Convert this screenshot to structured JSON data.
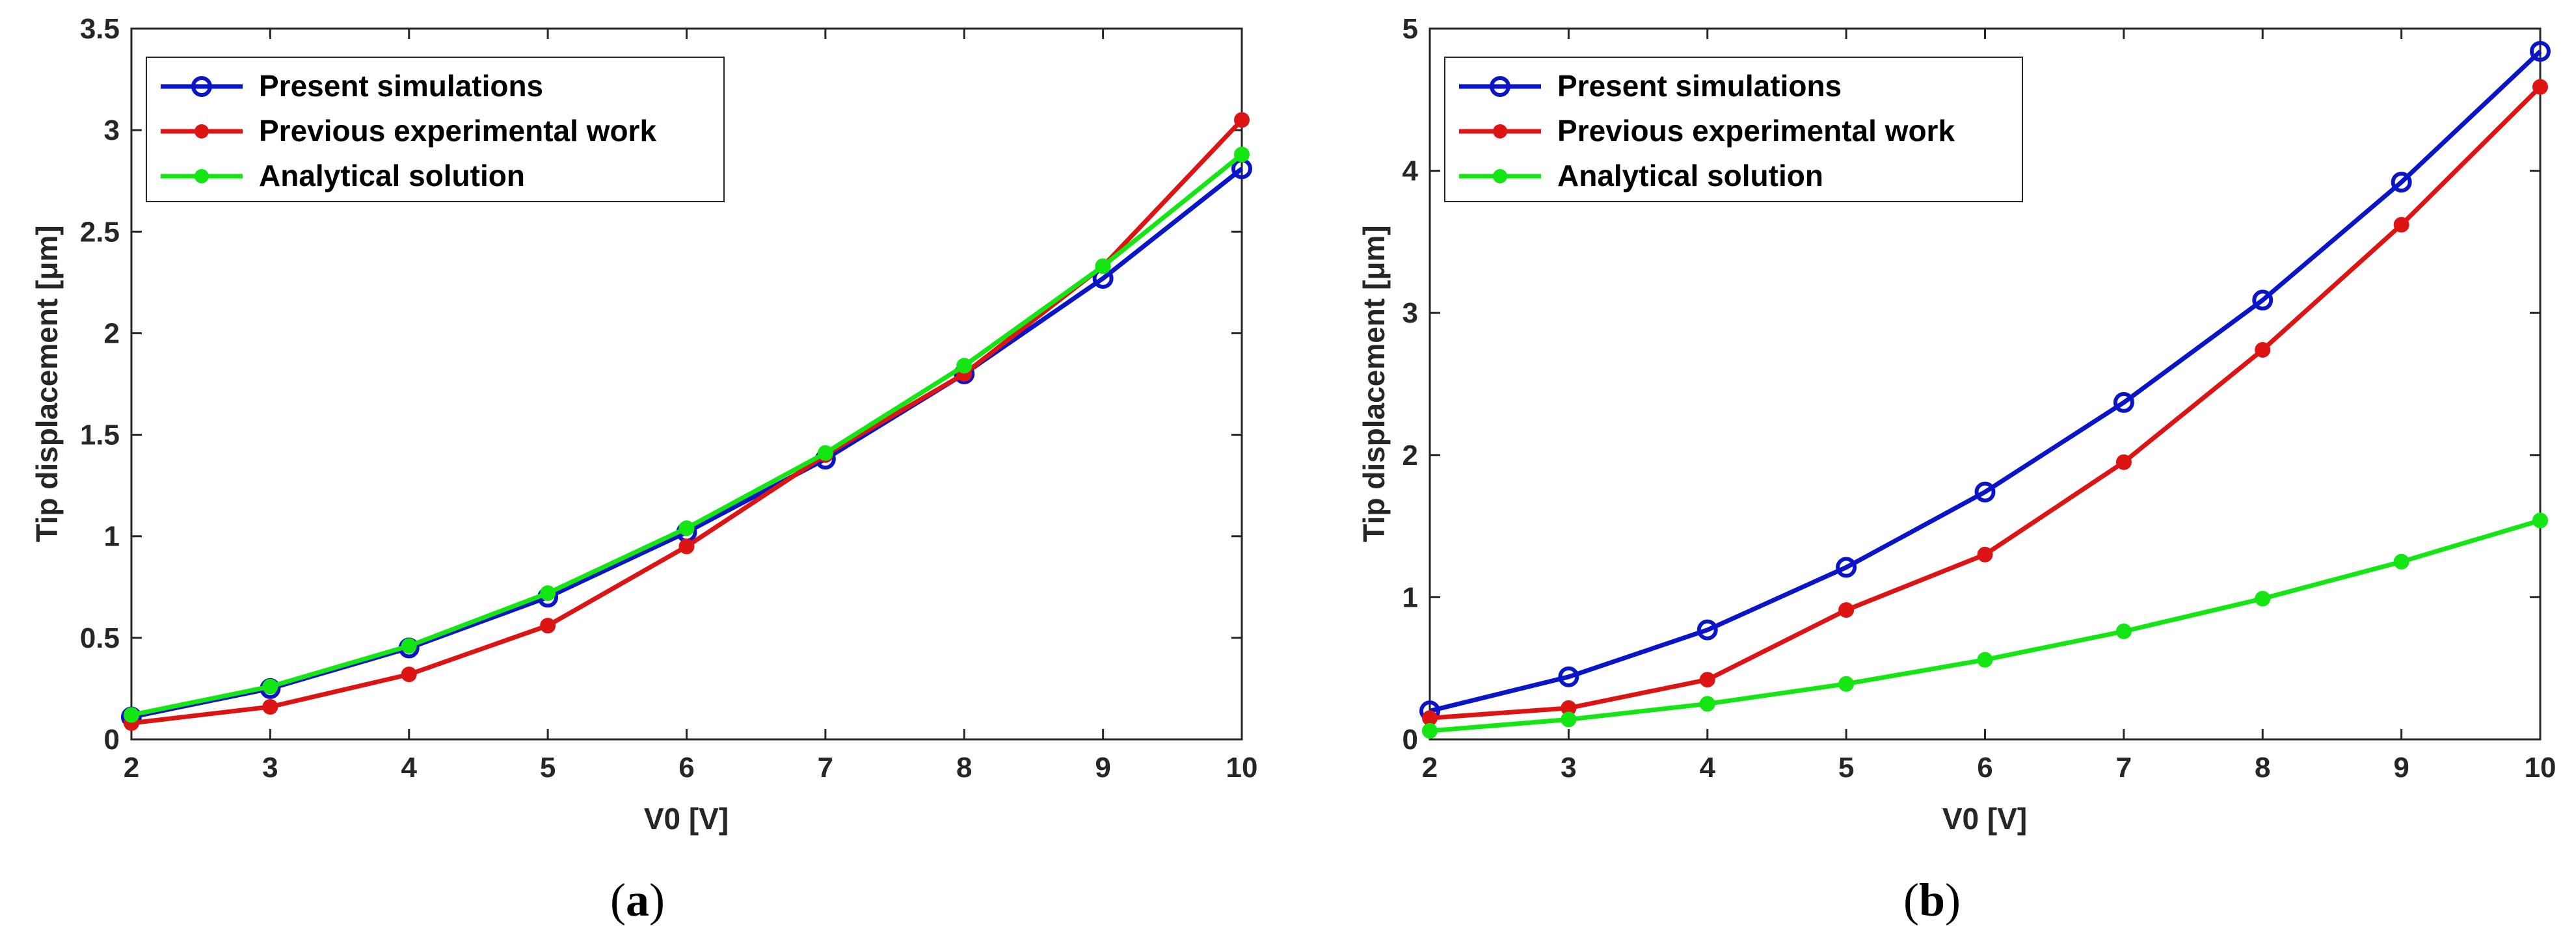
{
  "chart_data": [
    {
      "type": "line",
      "caption_letter": "a",
      "xlabel": "V0 [V]",
      "ylabel": "Tip displacement [μm]",
      "x": [
        2,
        3,
        4,
        5,
        6,
        7,
        8,
        9,
        10
      ],
      "xlim": [
        2,
        10
      ],
      "ylim": [
        0,
        3.5
      ],
      "xticks": [
        "2",
        "3",
        "4",
        "5",
        "6",
        "7",
        "8",
        "9",
        "10"
      ],
      "yticks": [
        "0",
        "0.5",
        "1",
        "1.5",
        "2",
        "2.5",
        "3",
        "3.5"
      ],
      "yticks_values": [
        0,
        0.5,
        1,
        1.5,
        2,
        2.5,
        3,
        3.5
      ],
      "legend_position": "top-left",
      "series": [
        {
          "name": "Present simulations",
          "color": "#0a14c8",
          "marker": "open-circle",
          "values": [
            0.11,
            0.25,
            0.45,
            0.7,
            1.02,
            1.38,
            1.8,
            2.27,
            2.81
          ]
        },
        {
          "name": "Previous experimental work",
          "color": "#dc1414",
          "marker": "filled-circle",
          "values": [
            0.08,
            0.16,
            0.32,
            0.56,
            0.95,
            1.4,
            1.8,
            2.33,
            3.05
          ]
        },
        {
          "name": "Analytical solution",
          "color": "#14e614",
          "marker": "filled-circle",
          "values": [
            0.12,
            0.26,
            0.46,
            0.72,
            1.04,
            1.41,
            1.84,
            2.33,
            2.88
          ]
        }
      ]
    },
    {
      "type": "line",
      "caption_letter": "b",
      "xlabel": "V0 [V]",
      "ylabel": "Tip displacement [μm]",
      "x": [
        2,
        3,
        4,
        5,
        6,
        7,
        8,
        9,
        10
      ],
      "xlim": [
        2,
        10
      ],
      "ylim": [
        0,
        5
      ],
      "xticks": [
        "2",
        "3",
        "4",
        "5",
        "6",
        "7",
        "8",
        "9",
        "10"
      ],
      "yticks": [
        "0",
        "1",
        "2",
        "3",
        "4",
        "5"
      ],
      "yticks_values": [
        0,
        1,
        2,
        3,
        4,
        5
      ],
      "legend_position": "top-left",
      "series": [
        {
          "name": "Present simulations",
          "color": "#0a14c8",
          "marker": "open-circle",
          "values": [
            0.2,
            0.44,
            0.77,
            1.21,
            1.74,
            2.37,
            3.09,
            3.92,
            4.84
          ]
        },
        {
          "name": "Previous experimental work",
          "color": "#dc1414",
          "marker": "filled-circle",
          "values": [
            0.15,
            0.22,
            0.42,
            0.91,
            1.3,
            1.95,
            2.74,
            3.62,
            4.59
          ]
        },
        {
          "name": "Analytical solution",
          "color": "#14e614",
          "marker": "filled-circle",
          "values": [
            0.06,
            0.14,
            0.25,
            0.39,
            0.56,
            0.76,
            0.99,
            1.25,
            1.54
          ]
        }
      ]
    }
  ]
}
